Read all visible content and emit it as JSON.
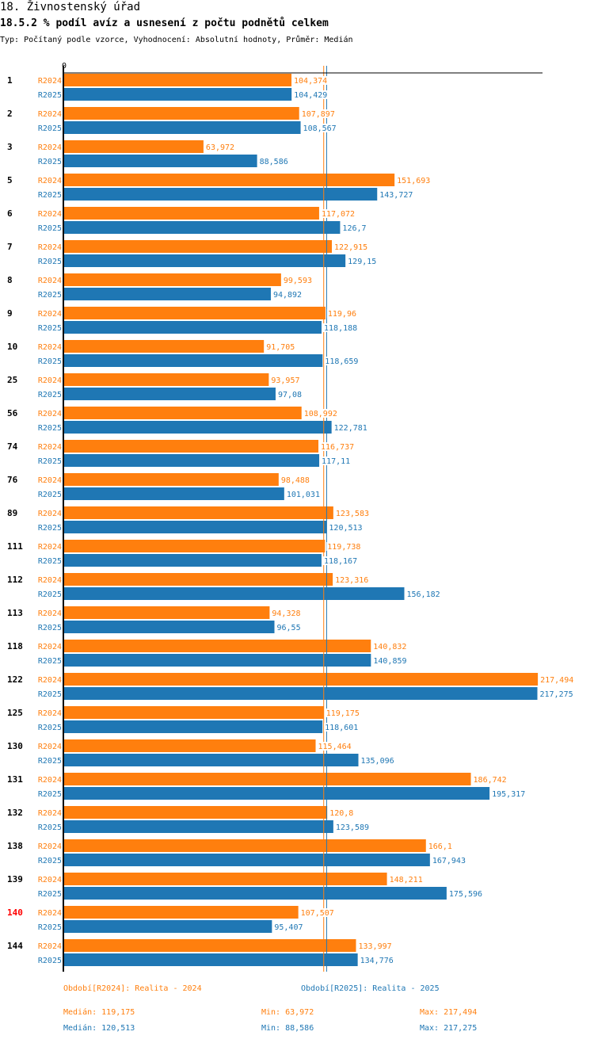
{
  "header": {
    "title": "18. Živnostenský úřad",
    "subtitle": "18.5.2 % podíl avíz a usnesení z počtu podnětů celkem",
    "description": "Typ: Počítaný podle vzorce, Vyhodnocení: Absolutní hodnoty, Průměr: Medián"
  },
  "colors": {
    "R2024": "#ff7f0e",
    "R2025": "#1f77b4",
    "highlight": "#ff0000",
    "axis": "#000000"
  },
  "chart_data": {
    "type": "bar",
    "orientation": "horizontal",
    "title": "18.5.2 % podíl avíz a usnesení z počtu podnětů celkem",
    "axis_zero_label": "0",
    "xlim": [
      0,
      218
    ],
    "categories": [
      "1",
      "2",
      "3",
      "5",
      "6",
      "7",
      "8",
      "9",
      "10",
      "25",
      "56",
      "74",
      "76",
      "89",
      "111",
      "112",
      "113",
      "118",
      "122",
      "125",
      "130",
      "131",
      "132",
      "138",
      "139",
      "140",
      "144"
    ],
    "highlighted_category": "140",
    "series": [
      {
        "name": "R2024",
        "values": [
          104.374,
          107.897,
          63.972,
          151.693,
          117.072,
          122.915,
          99.593,
          119.96,
          91.705,
          93.957,
          108.992,
          116.737,
          98.488,
          123.583,
          119.738,
          123.316,
          94.328,
          140.832,
          217.494,
          119.175,
          115.464,
          186.742,
          120.8,
          166.1,
          148.211,
          107.507,
          133.997
        ],
        "labels": [
          "104,374",
          "107,897",
          "63,972",
          "151,693",
          "117,072",
          "122,915",
          "99,593",
          "119,96",
          "91,705",
          "93,957",
          "108,992",
          "116,737",
          "98,488",
          "123,583",
          "119,738",
          "123,316",
          "94,328",
          "140,832",
          "217,494",
          "119,175",
          "115,464",
          "186,742",
          "120,8",
          "166,1",
          "148,211",
          "107,507",
          "133,997"
        ],
        "median": 119.175
      },
      {
        "name": "R2025",
        "values": [
          104.429,
          108.567,
          88.586,
          143.727,
          126.7,
          129.15,
          94.892,
          118.188,
          118.659,
          97.08,
          122.781,
          117.11,
          101.031,
          120.513,
          118.167,
          156.182,
          96.55,
          140.859,
          217.275,
          118.601,
          135.096,
          195.317,
          123.589,
          167.943,
          175.596,
          95.407,
          134.776
        ],
        "labels": [
          "104,429",
          "108,567",
          "88,586",
          "143,727",
          "126,7",
          "129,15",
          "94,892",
          "118,188",
          "118,659",
          "97,08",
          "122,781",
          "117,11",
          "101,031",
          "120,513",
          "118,167",
          "156,182",
          "96,55",
          "140,859",
          "217,275",
          "118,601",
          "135,096",
          "195,317",
          "123,589",
          "167,943",
          "175,596",
          "95,407",
          "134,776"
        ],
        "median": 120.513
      }
    ],
    "legend": {
      "R2024": "Období[R2024]: Realita - 2024",
      "R2025": "Období[R2025]: Realita - 2025"
    },
    "stats": {
      "R2024": {
        "median": "Medián: 119,175",
        "min": "Min: 63,972",
        "max": "Max: 217,494"
      },
      "R2025": {
        "median": "Medián: 120,513",
        "min": "Min: 88,586",
        "max": "Max: 217,275"
      }
    }
  }
}
